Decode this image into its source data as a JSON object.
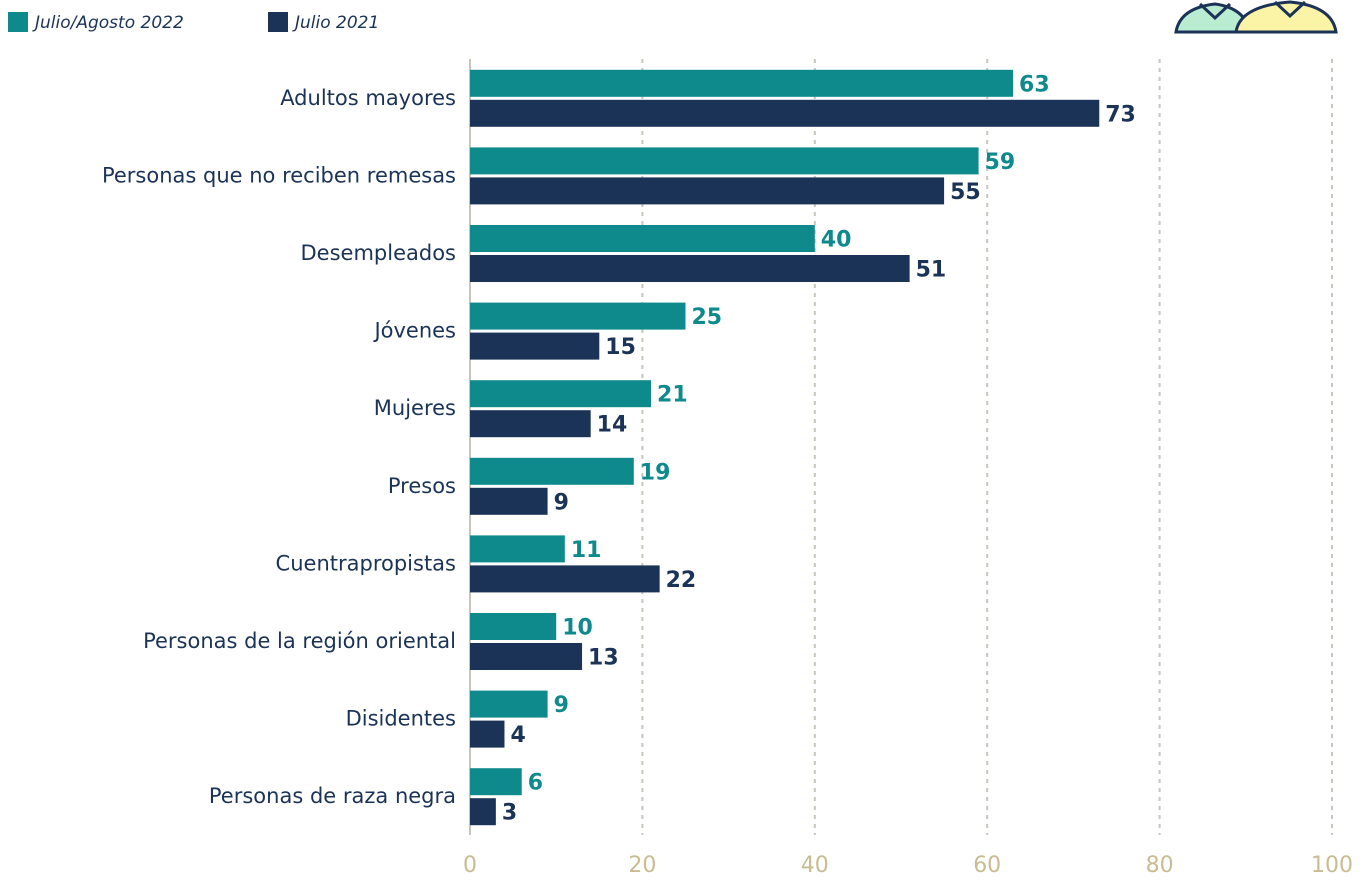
{
  "chart_data": {
    "type": "bar",
    "horizontal": true,
    "categories": [
      "Adultos mayores",
      "Personas que no reciben remesas",
      "Desempleados",
      "Jóvenes",
      "Mujeres",
      "Presos",
      "Cuentrapropistas",
      "Personas de la región oriental",
      "Disidentes",
      "Personas de raza negra"
    ],
    "series": [
      {
        "name": "Julio/Agosto 2022",
        "color": "#0e8a8c",
        "values": [
          63,
          59,
          40,
          25,
          21,
          19,
          11,
          10,
          9,
          6
        ]
      },
      {
        "name": "Julio 2021",
        "color": "#1b3357",
        "values": [
          73,
          55,
          51,
          15,
          14,
          9,
          22,
          13,
          4,
          3
        ]
      }
    ],
    "xlim": [
      0,
      100
    ],
    "xticks": [
      0,
      20,
      40,
      60,
      80,
      100
    ],
    "grid": true
  }
}
